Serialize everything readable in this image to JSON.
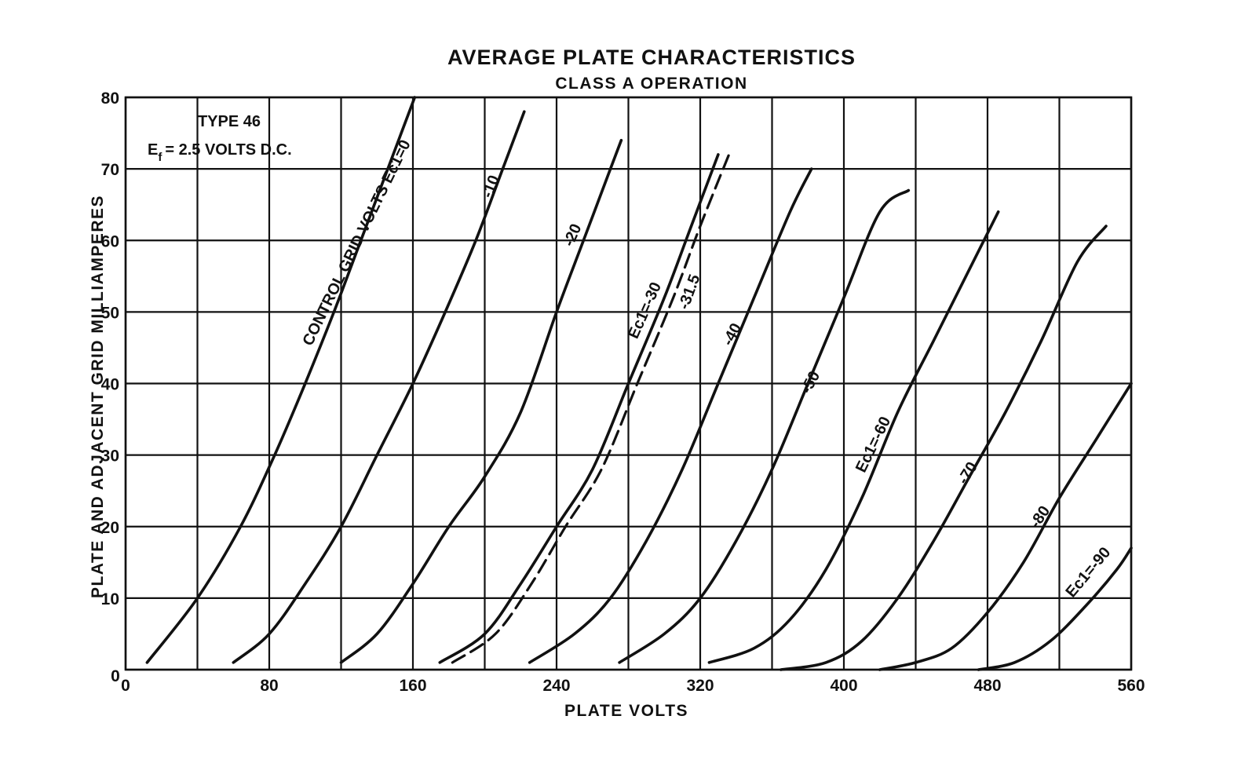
{
  "chart_data": {
    "type": "line",
    "title": "AVERAGE PLATE CHARACTERISTICS",
    "subtitle": "CLASS A OPERATION",
    "xlabel": "PLATE VOLTS",
    "ylabel": "PLATE AND ADJACENT GRID MILLIAMPERES",
    "xlim": [
      0,
      560
    ],
    "ylim": [
      0,
      80
    ],
    "x_grid_step": 40,
    "y_grid_step": 10,
    "x_ticks": [
      {
        "value": 0,
        "label": "0"
      },
      {
        "value": 80,
        "label": "80"
      },
      {
        "value": 160,
        "label": "160"
      },
      {
        "value": 240,
        "label": "240"
      },
      {
        "value": 320,
        "label": "320"
      },
      {
        "value": 400,
        "label": "400"
      },
      {
        "value": 480,
        "label": "480"
      },
      {
        "value": 560,
        "label": "560"
      }
    ],
    "y_ticks": [
      {
        "value": 10,
        "label": "10"
      },
      {
        "value": 20,
        "label": "20"
      },
      {
        "value": 30,
        "label": "30"
      },
      {
        "value": 40,
        "label": "40"
      },
      {
        "value": 50,
        "label": "50"
      },
      {
        "value": 60,
        "label": "60"
      },
      {
        "value": 70,
        "label": "70"
      },
      {
        "value": 80,
        "label": "80"
      }
    ],
    "annotations": {
      "tube_type": "TYPE 46",
      "filament_prefix": "E",
      "filament_subscript": "f",
      "filament_value": "= 2.5 VOLTS D.C."
    },
    "series": [
      {
        "name": "Ec1=0",
        "label": "CONTROL GRID VOLTS Ec1=0",
        "dashed": false,
        "points": [
          [
            12,
            1
          ],
          [
            40,
            10
          ],
          [
            64,
            20
          ],
          [
            83,
            30
          ],
          [
            100,
            40
          ],
          [
            116,
            50
          ],
          [
            131,
            60
          ],
          [
            146,
            70
          ],
          [
            161,
            80
          ]
        ]
      },
      {
        "name": "Ec1=-10",
        "label": "-10",
        "dashed": false,
        "points": [
          [
            60,
            1
          ],
          [
            80,
            5
          ],
          [
            100,
            12
          ],
          [
            120,
            20
          ],
          [
            140,
            30
          ],
          [
            160,
            40
          ],
          [
            178,
            50
          ],
          [
            195,
            60
          ],
          [
            210,
            70
          ],
          [
            222,
            78
          ]
        ]
      },
      {
        "name": "Ec1=-20",
        "label": "-20",
        "dashed": false,
        "points": [
          [
            120,
            1
          ],
          [
            140,
            5
          ],
          [
            160,
            12
          ],
          [
            180,
            20
          ],
          [
            200,
            27
          ],
          [
            220,
            36
          ],
          [
            240,
            50
          ],
          [
            255,
            60
          ],
          [
            270,
            70
          ],
          [
            276,
            74
          ]
        ]
      },
      {
        "name": "Ec1=-30",
        "label": "Ec1=-30",
        "dashed": false,
        "points": [
          [
            175,
            1
          ],
          [
            200,
            5
          ],
          [
            220,
            12
          ],
          [
            240,
            20
          ],
          [
            260,
            28
          ],
          [
            280,
            40
          ],
          [
            300,
            52
          ],
          [
            315,
            62
          ],
          [
            330,
            72
          ]
        ]
      },
      {
        "name": "Ec1=-31.5",
        "label": "-31.5",
        "dashed": true,
        "points": [
          [
            182,
            1
          ],
          [
            206,
            5
          ],
          [
            226,
            12
          ],
          [
            245,
            20
          ],
          [
            265,
            28
          ],
          [
            285,
            40
          ],
          [
            305,
            52
          ],
          [
            320,
            62
          ],
          [
            336,
            72
          ]
        ]
      },
      {
        "name": "Ec1=-40",
        "label": "-40",
        "dashed": false,
        "points": [
          [
            225,
            1
          ],
          [
            250,
            5
          ],
          [
            270,
            10
          ],
          [
            290,
            18
          ],
          [
            310,
            28
          ],
          [
            330,
            40
          ],
          [
            350,
            52
          ],
          [
            370,
            64
          ],
          [
            382,
            70
          ]
        ]
      },
      {
        "name": "Ec1=-50",
        "label": "-50",
        "dashed": false,
        "points": [
          [
            275,
            1
          ],
          [
            300,
            5
          ],
          [
            320,
            10
          ],
          [
            340,
            18
          ],
          [
            360,
            28
          ],
          [
            380,
            40
          ],
          [
            400,
            52
          ],
          [
            420,
            64
          ],
          [
            436,
            67
          ]
        ]
      },
      {
        "name": "Ec1=-60",
        "label": "Ec1=-60",
        "dashed": false,
        "points": [
          [
            325,
            1
          ],
          [
            350,
            3
          ],
          [
            370,
            7
          ],
          [
            390,
            14
          ],
          [
            410,
            24
          ],
          [
            430,
            36
          ],
          [
            450,
            46
          ],
          [
            470,
            56
          ],
          [
            486,
            64
          ]
        ]
      },
      {
        "name": "Ec1=-70",
        "label": "-70",
        "dashed": false,
        "points": [
          [
            365,
            0
          ],
          [
            390,
            1
          ],
          [
            410,
            4
          ],
          [
            430,
            10
          ],
          [
            450,
            18
          ],
          [
            470,
            27
          ],
          [
            490,
            36
          ],
          [
            510,
            46
          ],
          [
            530,
            57
          ],
          [
            546,
            62
          ]
        ]
      },
      {
        "name": "Ec1=-80",
        "label": "-80",
        "dashed": false,
        "points": [
          [
            420,
            0
          ],
          [
            440,
            1
          ],
          [
            460,
            3
          ],
          [
            480,
            8
          ],
          [
            500,
            15
          ],
          [
            520,
            24
          ],
          [
            540,
            32
          ],
          [
            560,
            40
          ]
        ]
      },
      {
        "name": "Ec1=-90",
        "label": "Ec1=-90",
        "dashed": false,
        "points": [
          [
            475,
            0
          ],
          [
            495,
            1
          ],
          [
            515,
            4
          ],
          [
            535,
            9
          ],
          [
            552,
            14
          ],
          [
            560,
            17
          ]
        ]
      }
    ]
  }
}
